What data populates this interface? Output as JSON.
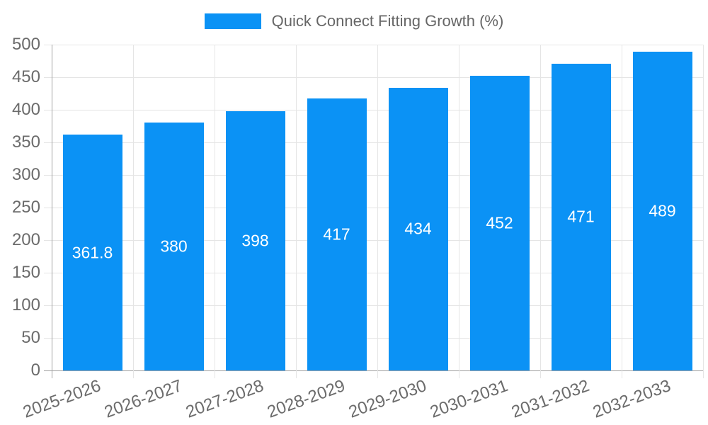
{
  "chart_data": {
    "type": "bar",
    "title": "Quick Connect Fitting Growth (%)",
    "categories": [
      "2025-2026",
      "2026-2027",
      "2027-2028",
      "2028-2029",
      "2029-2030",
      "2030-2031",
      "2031-2032",
      "2032-2033"
    ],
    "values": [
      361.8,
      380,
      398,
      417,
      434,
      452,
      471,
      489
    ],
    "value_labels": [
      "361.8",
      "380",
      "398",
      "417",
      "434",
      "452",
      "471",
      "489"
    ],
    "ylim": [
      0,
      500
    ],
    "ytick_labels": [
      "0",
      "50",
      "100",
      "150",
      "200",
      "250",
      "300",
      "350",
      "400",
      "450",
      "500"
    ],
    "grid": true,
    "legend_position": "top",
    "bar_color": "#0b92f5",
    "value_label_color": "#ffffff",
    "axis_text_color": "#6b6b6b",
    "legend_text_color": "#666666",
    "grid_color": "#e5e5e5",
    "axis_line_color": "#a0a0a0"
  }
}
